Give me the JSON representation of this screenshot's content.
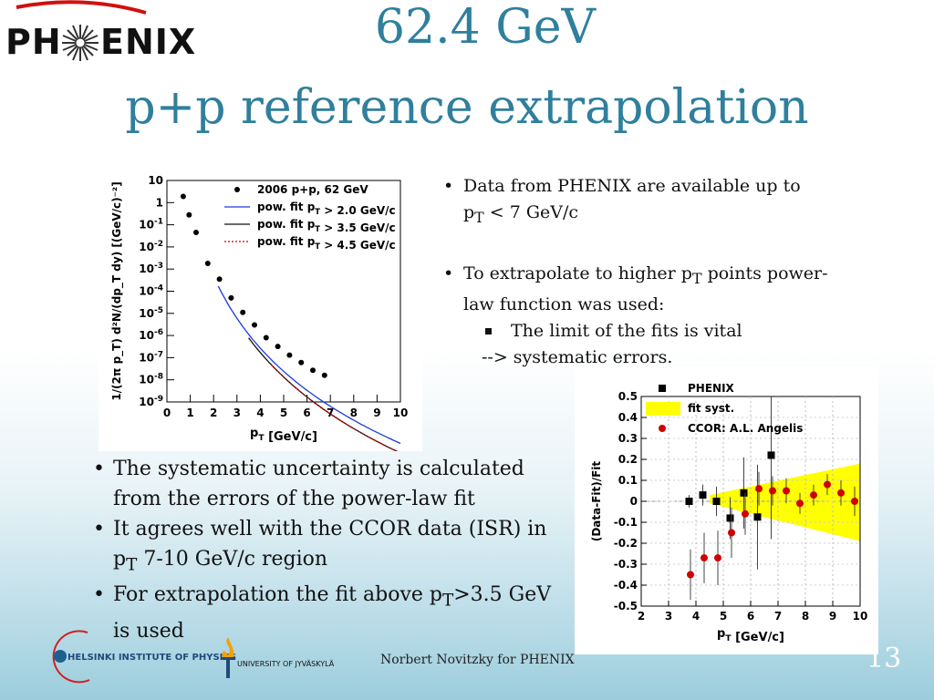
{
  "logo": {
    "text_left": "PH",
    "text_right": "ENIX"
  },
  "title": {
    "line1": "62.4 GeV",
    "line2": "p+p reference extrapolation"
  },
  "right_bullets": {
    "b1_a": "Data from PHENIX are available up to",
    "b1_b_pre": "p",
    "b1_b_sub": "T",
    "b1_b_post": " < 7 GeV/c",
    "b2_a_pre": "To extrapolate to higher p",
    "b2_a_sub": "T",
    "b2_a_post": " points power-",
    "b2_b": "law function was used:",
    "sub1": "The limit of the fits is vital",
    "sub2": "--> systematic errors."
  },
  "left_bullets": {
    "b1_a": "The systematic uncertainty is calculated",
    "b1_b": "from the errors of the power-law fit",
    "b2_a": "It agrees well with the CCOR data (ISR) in",
    "b2_b_pre": "p",
    "b2_b_sub": "T",
    "b2_b_post": " 7-10 GeV/c region",
    "b3_a_pre": "For extrapolation the fit above p",
    "b3_a_sub": "T",
    "b3_a_post": ">3.5 GeV",
    "b3_b": "is used"
  },
  "footer": {
    "author": "Norbert Novitzky for PHENIX",
    "page": "13",
    "hip": "HELSINKI INSTITUTE OF PHYSICS",
    "jyu": "UNIVERSITY OF JYVÄSKYLÄ"
  },
  "colors": {
    "title": "#2f7f9d",
    "fit_blue": "#1a3adf",
    "fit_black": "#111111",
    "fit_red": "#d00000",
    "ccor_red": "#d00000",
    "syst_yellow": "#ffff00"
  },
  "chart_data": [
    {
      "type": "scatter",
      "log_y": true,
      "xlim": [
        0,
        10
      ],
      "ylim": [
        1e-09,
        10
      ],
      "x_ticks": [
        "0",
        "1",
        "2",
        "3",
        "4",
        "5",
        "6",
        "7",
        "8",
        "9",
        "10"
      ],
      "y_ticks": [
        "10",
        "1",
        "10-1",
        "10-2",
        "10-3",
        "10-4",
        "10-5",
        "10-6",
        "10-7",
        "10-8",
        "10-9"
      ],
      "xlabel": "p_T [GeV/c]",
      "ylabel": "1/(2π p_T) d²N/(dp_T dy) [(GeV/c)⁻²]",
      "legend": [
        {
          "label": "2006 p+p, 62 GeV",
          "style": "dot"
        },
        {
          "label": "pow. fit p_T > 2.0 GeV/c",
          "style": "blue-line"
        },
        {
          "label": "pow. fit p_T > 3.5 GeV/c",
          "style": "black-line"
        },
        {
          "label": "pow. fit p_T > 4.5 GeV/c",
          "style": "red-dotted"
        }
      ],
      "legend_position": "top-right",
      "series": [
        {
          "name": "2006 p+p, 62 GeV",
          "x": [
            0.7,
            0.95,
            1.25,
            1.75,
            2.25,
            2.75,
            3.25,
            3.75,
            4.25,
            4.75,
            5.25,
            5.75,
            6.25,
            6.75
          ],
          "y": [
            1.9,
            0.28,
            0.045,
            0.0018,
            0.00035,
            5e-05,
            1.1e-05,
            3e-06,
            8e-07,
            3.2e-07,
            1.3e-07,
            6e-08,
            2.7e-08,
            1.6e-08
          ]
        },
        {
          "name": "pow. fit p_T > 2.0 GeV/c",
          "x": [
            2.2,
            10
          ],
          "A": 0.85,
          "n": 10.8
        },
        {
          "name": "pow. fit p_T > 3.5 GeV/c",
          "x": [
            3.5,
            10
          ],
          "A": 1.24,
          "n": 11.4
        },
        {
          "name": "pow. fit p_T > 4.5 GeV/c",
          "x": [
            4.5,
            10
          ],
          "A": 1.24,
          "n": 11.4
        }
      ]
    },
    {
      "type": "scatter",
      "xlim": [
        2,
        10
      ],
      "ylim": [
        -0.5,
        0.5
      ],
      "x_ticks": [
        "2",
        "3",
        "4",
        "5",
        "6",
        "7",
        "8",
        "9",
        "10"
      ],
      "y_ticks": [
        "0.5",
        "0.4",
        "0.3",
        "0.2",
        "0.1",
        "0",
        "-0.1",
        "-0.2",
        "-0.3",
        "-0.4",
        "-0.5"
      ],
      "xlabel": "p_T [GeV/c]",
      "ylabel": "(Data-Fit)/Fit",
      "legend": [
        {
          "label": "PHENIX",
          "style": "square"
        },
        {
          "label": "fit syst.",
          "style": "yellow-band"
        },
        {
          "label": "CCOR: A.L. Angelis",
          "style": "red-dot"
        }
      ],
      "legend_position": "top-left",
      "band": {
        "x": [
          4.5,
          10
        ],
        "lower_start": -0.01,
        "upper_start": 0.03,
        "lower_end": -0.19,
        "upper_end": 0.18
      },
      "series": [
        {
          "name": "PHENIX",
          "x": [
            3.75,
            4.25,
            4.75,
            5.25,
            5.75,
            6.25,
            6.75
          ],
          "y": [
            0.0,
            0.03,
            0.0,
            -0.08,
            0.04,
            -0.075,
            0.22
          ],
          "err": [
            0.03,
            0.05,
            0.07,
            0.1,
            0.17,
            0.25,
            0.4
          ]
        },
        {
          "name": "CCOR: A.L. Angelis",
          "x": [
            3.8,
            4.3,
            4.8,
            5.3,
            5.8,
            6.3,
            6.8,
            7.3,
            7.8,
            8.3,
            8.8,
            9.3,
            9.8
          ],
          "y": [
            -0.35,
            -0.27,
            -0.27,
            -0.15,
            -0.06,
            0.06,
            0.05,
            0.05,
            -0.01,
            0.03,
            0.08,
            0.04,
            0.0
          ],
          "err": [
            0.12,
            0.12,
            0.13,
            0.12,
            0.1,
            0.08,
            0.07,
            0.06,
            0.05,
            0.05,
            0.05,
            0.06,
            0.07
          ]
        }
      ]
    }
  ]
}
